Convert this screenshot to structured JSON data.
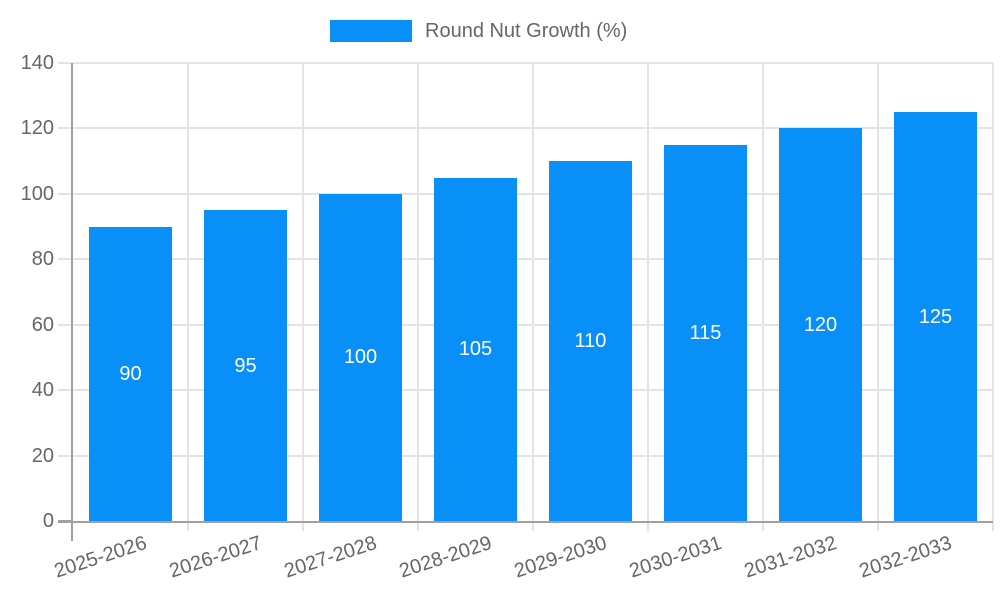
{
  "chart_data": {
    "type": "bar",
    "title": "",
    "legend": "Round Nut Growth (%)",
    "legend_position": "top",
    "categories": [
      "2025-2026",
      "2026-2027",
      "2027-2028",
      "2028-2029",
      "2029-2030",
      "2030-2031",
      "2031-2032",
      "2032-2033"
    ],
    "values": [
      90,
      95,
      100,
      105,
      110,
      115,
      120,
      125
    ],
    "yticks": [
      0,
      20,
      40,
      60,
      80,
      100,
      120,
      140
    ],
    "ylim": [
      0,
      140
    ],
    "xlabel": "",
    "ylabel": "",
    "grid": "on",
    "data_labels": "inside-center",
    "x_label_rotation_deg": -18,
    "colors": {
      "bar": "#0990f8",
      "gridline": "#e3e3e3",
      "axis": "#a0a0a0",
      "tick_text": "#666666",
      "bar_label_text": "#ffffff",
      "background": "#ffffff"
    }
  }
}
